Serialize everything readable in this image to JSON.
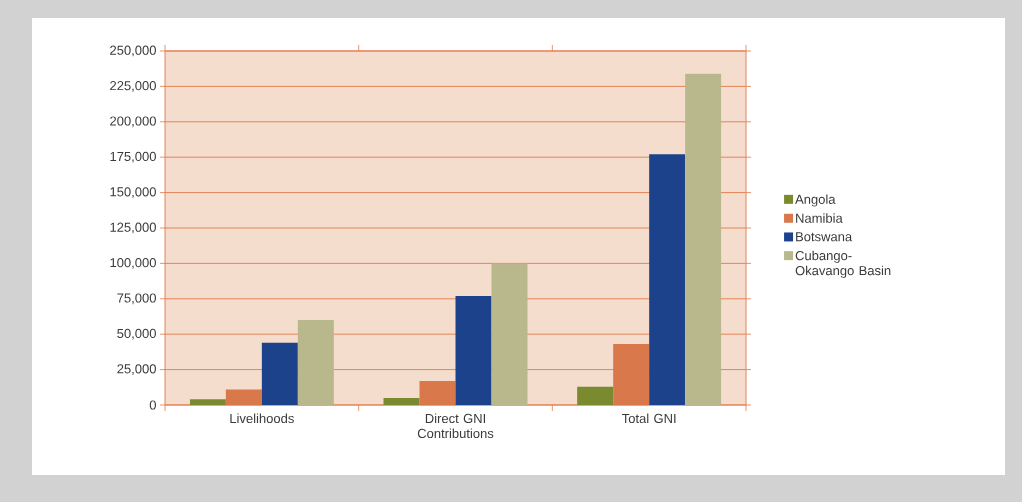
{
  "chart_data": {
    "type": "bar",
    "categories": [
      "Livelihoods",
      "Direct GNI Contributions",
      "Total GNI"
    ],
    "series": [
      {
        "name": "Angola",
        "color": "#7a8a2e",
        "values": [
          4000,
          5000,
          13000
        ]
      },
      {
        "name": "Namibia",
        "color": "#d9784a",
        "values": [
          11000,
          17000,
          43000
        ]
      },
      {
        "name": "Botswana",
        "color": "#1c428c",
        "values": [
          44000,
          77000,
          177000
        ]
      },
      {
        "name": "Cubango-Okavango Basin",
        "color": "#b8b88c",
        "values": [
          60000,
          100000,
          234000
        ]
      }
    ],
    "ylim": [
      0,
      250000
    ],
    "yticks": [
      {
        "value": 0,
        "label": "0"
      },
      {
        "value": 25000,
        "label": "25,000"
      },
      {
        "value": 50000,
        "label": "50,000"
      },
      {
        "value": 75000,
        "label": "75,000"
      },
      {
        "value": 100000,
        "label": "100,000"
      },
      {
        "value": 125000,
        "label": "125,000"
      },
      {
        "value": 150000,
        "label": "150,000"
      },
      {
        "value": 175000,
        "label": "175,000"
      },
      {
        "value": 200000,
        "label": "200,000"
      },
      {
        "value": 225000,
        "label": "225,000"
      },
      {
        "value": 250000,
        "label": "250,000"
      }
    ],
    "grid": "y",
    "legend": "right"
  }
}
